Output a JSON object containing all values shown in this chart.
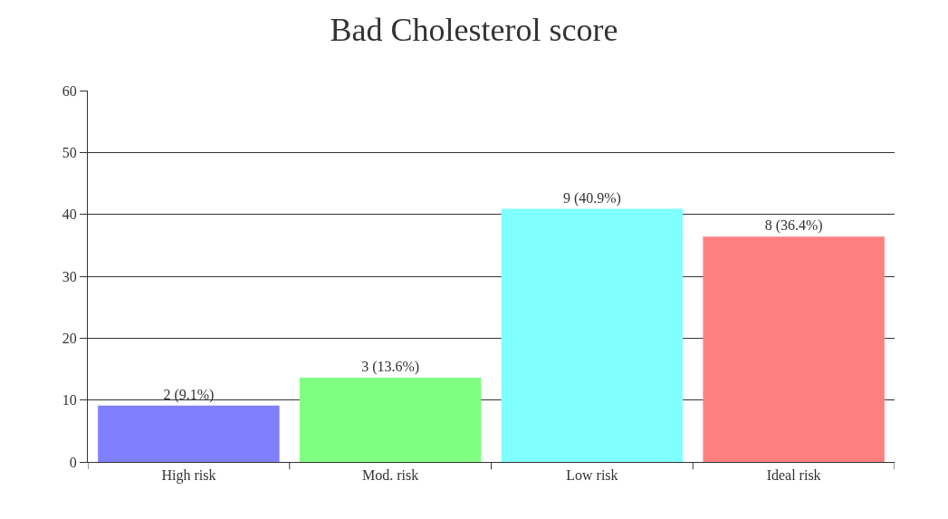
{
  "chart_data": {
    "type": "bar",
    "title": "Bad Cholesterol score",
    "categories": [
      "High risk",
      "Mod. risk",
      "Low risk",
      "Ideal risk"
    ],
    "values": [
      9.1,
      13.6,
      40.9,
      36.4
    ],
    "colors": [
      "#8080ff",
      "#80ff80",
      "#80ffff",
      "#ff8080"
    ],
    "value_labels": [
      "2 (9.1%)",
      "3 (13.6%)",
      "9 (40.9%)",
      "8 (36.4%)"
    ],
    "ylim": [
      0,
      60
    ],
    "yticks": [
      0,
      10,
      20,
      30,
      40,
      50,
      60
    ],
    "grid": "y"
  }
}
